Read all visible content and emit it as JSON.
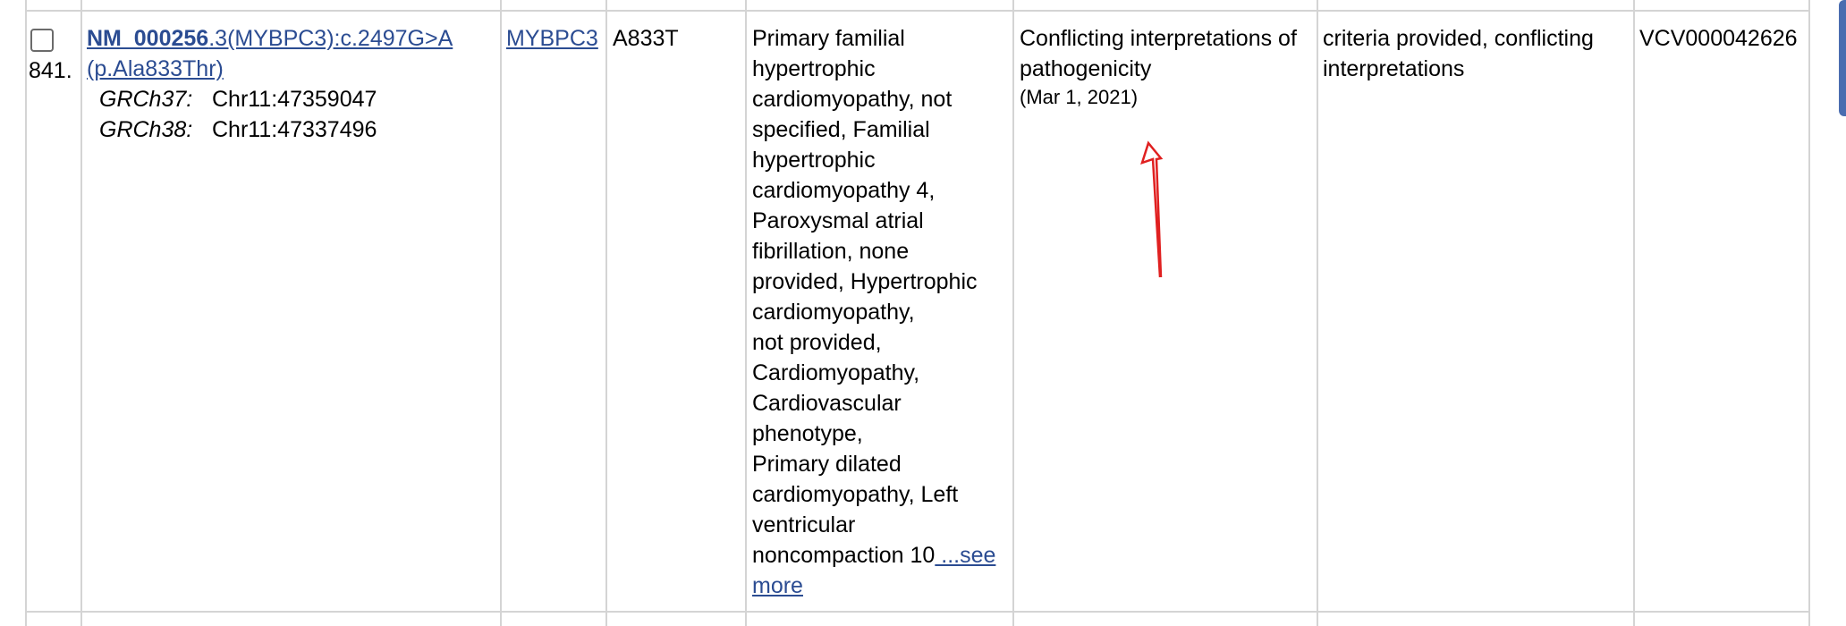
{
  "row": {
    "number": "841.",
    "variant": {
      "transcript_bold": "NM_000256",
      "transcript_rest": ".3(MYBPC3):c.2497G>A",
      "protein": "(p.Ala833Thr)",
      "grch37_label": "GRCh37:",
      "grch37_value": "Chr11:47359047",
      "grch38_label": "GRCh38:",
      "grch38_value": "Chr11:47337496"
    },
    "gene": "MYBPC3",
    "protein_change": "A833T",
    "conditions": {
      "lines": [
        "Primary familial",
        "hypertrophic",
        "cardiomyopathy, not",
        "specified, Familial",
        "hypertrophic",
        "cardiomyopathy 4,",
        "Paroxysmal atrial",
        "fibrillation, none",
        "provided, Hypertrophic",
        "cardiomyopathy,",
        "not provided,",
        "Cardiomyopathy,",
        "Cardiovascular",
        "phenotype,",
        "Primary dilated",
        "cardiomyopathy, Left",
        "ventricular",
        "noncompaction 10"
      ],
      "see_more_1": " ...see",
      "see_more_2": "more"
    },
    "classification": {
      "line1": "Conflicting interpretations of",
      "line2": "pathogenicity",
      "date": "(Mar 1, 2021)"
    },
    "review_status": {
      "line1": "criteria provided, conflicting",
      "line2": "interpretations"
    },
    "accession": "VCV000042626"
  },
  "colors": {
    "link": "#2b4c92",
    "grid": "#d4d4d4",
    "annotation_arrow": "#e02020"
  },
  "icons": {
    "annotation": "red-arrow-annotation",
    "checkbox": "row-select-checkbox"
  }
}
